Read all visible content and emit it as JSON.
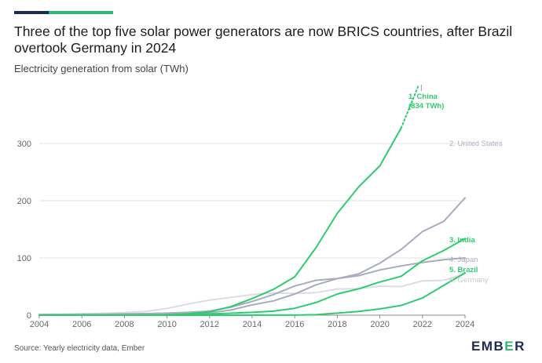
{
  "header": {
    "title": "Three of the top five solar power generators are now BRICS countries, after Brazil overtook Germany in 2024",
    "subtitle": "Electricity generation from solar (TWh)"
  },
  "footer": {
    "source": "Source: Yearly electricity data, Ember",
    "logo_left": "EMB",
    "logo_mid": "E",
    "logo_right": "R"
  },
  "colors": {
    "brand_navy": "#1e2b50",
    "brand_green": "#2fb672"
  },
  "chart_data": {
    "type": "line",
    "title": "Three of the top five solar power generators are now BRICS countries, after Brazil overtook Germany in 2024",
    "subtitle": "Electricity generation from solar (TWh)",
    "xlabel": "",
    "ylabel": "",
    "xlim": [
      2004,
      2024
    ],
    "ylim": [
      0,
      400
    ],
    "x_ticks": [
      "2004",
      "2006",
      "2008",
      "2010",
      "2012",
      "2014",
      "2016",
      "2018",
      "2020",
      "2022",
      "2024"
    ],
    "y_ticks": [
      "0",
      "100",
      "200",
      "300"
    ],
    "x": [
      2004,
      2005,
      2006,
      2007,
      2008,
      2009,
      2010,
      2011,
      2012,
      2013,
      2014,
      2015,
      2016,
      2017,
      2018,
      2019,
      2020,
      2021,
      2022,
      2023,
      2024
    ],
    "series": [
      {
        "name": "China",
        "label_line1": "1. China",
        "label_line2": "(834 TWh)",
        "color": "#2ecc71",
        "values": [
          0,
          0,
          0,
          0,
          0.2,
          0.4,
          0.7,
          2.5,
          6,
          15,
          29,
          45,
          67,
          118,
          178,
          224,
          261,
          327,
          null,
          null,
          null
        ],
        "continuation_values": [
          327,
          400
        ],
        "continuation_x": [
          2021,
          2021.8
        ]
      },
      {
        "name": "United States",
        "label_line1": "2. United States",
        "color": "#a8acbd",
        "values": [
          0.5,
          0.6,
          0.6,
          0.7,
          0.9,
          1,
          1.5,
          2,
          4,
          9,
          18,
          25,
          37,
          53,
          64,
          72,
          91,
          115,
          146,
          164,
          205
        ]
      },
      {
        "name": "India",
        "label_line1": "3. India",
        "color": "#2ecc71",
        "values": [
          0,
          0,
          0,
          0,
          0,
          0,
          0.1,
          0.5,
          2,
          3.4,
          5,
          7,
          12,
          22,
          37,
          46,
          58,
          68,
          95,
          113,
          134
        ]
      },
      {
        "name": "Japan",
        "label_line1": "4. Japan",
        "color": "#a8acbd",
        "values": [
          1.3,
          1.5,
          1.8,
          1.9,
          2.3,
          2.8,
          3.5,
          5,
          7,
          14,
          24,
          36,
          51,
          61,
          64,
          69,
          79,
          86,
          92,
          97,
          100
        ]
      },
      {
        "name": "Brazil",
        "label_line1": "5. Brazil",
        "color": "#2ecc71",
        "values": [
          0,
          0,
          0,
          0,
          0,
          0,
          0,
          0,
          0,
          0,
          0,
          0.1,
          0.1,
          0.8,
          3.5,
          6.6,
          11,
          17,
          30,
          52,
          74
        ]
      },
      {
        "name": "Germany",
        "label_line1": "6. Germany",
        "color": "#dcdde2",
        "values": [
          0.6,
          1.3,
          2.2,
          3.1,
          4.4,
          6.6,
          11.7,
          19.6,
          26.4,
          31,
          36,
          38.7,
          38.1,
          39.4,
          45.8,
          46.4,
          50.7,
          50,
          60,
          61,
          72
        ]
      }
    ]
  }
}
